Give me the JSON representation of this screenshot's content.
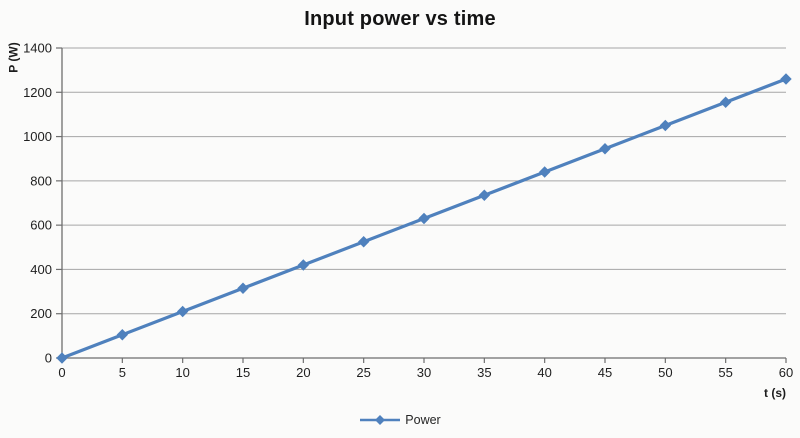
{
  "chart_data": {
    "type": "line",
    "title": "Input power vs time",
    "xlabel": "t (s)",
    "ylabel": "P (W)",
    "x": [
      0,
      5,
      10,
      15,
      20,
      25,
      30,
      35,
      40,
      45,
      50,
      55,
      60
    ],
    "series": [
      {
        "name": "Power",
        "color": "#4f81bd",
        "marker": "diamond",
        "values": [
          0,
          105,
          210,
          315,
          420,
          525,
          630,
          735,
          840,
          945,
          1050,
          1155,
          1260
        ]
      }
    ],
    "xlim": [
      0,
      60
    ],
    "ylim": [
      0,
      1400
    ],
    "xticks": [
      0,
      5,
      10,
      15,
      20,
      25,
      30,
      35,
      40,
      45,
      50,
      55,
      60
    ],
    "yticks": [
      0,
      200,
      400,
      600,
      800,
      1000,
      1200,
      1400
    ],
    "grid": "horizontal-major",
    "legend_position": "bottom-center",
    "colors": {
      "gridline": "#a6a6a6",
      "axis": "#6e6e6e",
      "tick_text": "#1f1f1f",
      "background": "#fbfbfa"
    }
  }
}
